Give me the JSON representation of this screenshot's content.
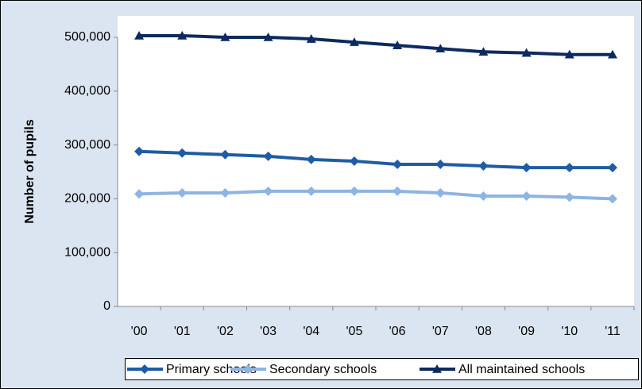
{
  "chart_data": {
    "type": "line",
    "y_label": "Number of pupils",
    "categories": [
      "'00",
      "'01",
      "'02",
      "'03",
      "'04",
      "'05",
      "'06",
      "'07",
      "'08",
      "'09",
      "'10",
      "'11"
    ],
    "series": [
      {
        "name": "Primary schools",
        "color": "#1f5ca4",
        "marker": "diamond",
        "values": [
          288000,
          285000,
          282000,
          279000,
          273000,
          270000,
          264000,
          264000,
          261000,
          258000,
          258000,
          258000
        ]
      },
      {
        "name": "Secondary schools",
        "color": "#8db4e2",
        "marker": "diamond",
        "values": [
          209000,
          211000,
          211000,
          214000,
          214000,
          214000,
          214000,
          211000,
          205000,
          205000,
          203000,
          200000
        ]
      },
      {
        "name": "All maintained schools",
        "color": "#0d2a5e",
        "marker": "triangle",
        "values": [
          503000,
          503000,
          500000,
          500000,
          497000,
          491000,
          485000,
          479000,
          473000,
          471000,
          468000,
          468000
        ]
      }
    ],
    "ylim": [
      0,
      500000
    ],
    "yticks": [
      0,
      {
        "value": 100000,
        "label": "100,000"
      },
      {
        "value": 200000,
        "label": "200,000"
      },
      {
        "value": 300000,
        "label": "300,000"
      },
      {
        "value": 400000,
        "label": "400,000"
      },
      {
        "value": 500000,
        "label": "500,000"
      }
    ],
    "grid": false,
    "legend": "bottom"
  }
}
